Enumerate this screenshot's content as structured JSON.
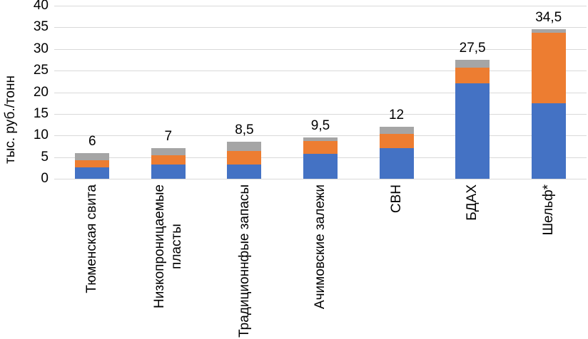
{
  "chart_data": {
    "type": "bar",
    "stacked": true,
    "title": "",
    "ylabel": "тыс. руб./тонн",
    "xlabel": "",
    "ylim": [
      0,
      40
    ],
    "yticks": [
      0,
      5,
      10,
      15,
      20,
      25,
      30,
      35,
      40
    ],
    "grid": true,
    "legend": false,
    "categories": [
      "Тюменская свита",
      "Низкопроницаемые\nпласты",
      "Традиционнфые запасы",
      "Ачимовские залежи",
      "СВН",
      "БДАХ",
      "Шельф*"
    ],
    "series": [
      {
        "name": "series-blue",
        "color": "#4472C4",
        "values": [
          2.6,
          3.3,
          3.3,
          5.8,
          7.0,
          22.0,
          17.4
        ]
      },
      {
        "name": "series-orange",
        "color": "#ED7D31",
        "values": [
          1.7,
          2.1,
          3.2,
          2.9,
          3.3,
          3.6,
          16.3
        ]
      },
      {
        "name": "series-gray",
        "color": "#A5A5A5",
        "values": [
          1.7,
          1.6,
          2.0,
          0.8,
          1.7,
          1.9,
          0.8
        ]
      }
    ],
    "totals": [
      6,
      7,
      8.5,
      9.5,
      12,
      27.5,
      34.5
    ],
    "total_labels": [
      "6",
      "7",
      "8,5",
      "9,5",
      "12",
      "27,5",
      "34,5"
    ],
    "colors": {
      "gridline": "#D9D9D9",
      "text": "#000000",
      "background": "#FFFFFF"
    }
  }
}
